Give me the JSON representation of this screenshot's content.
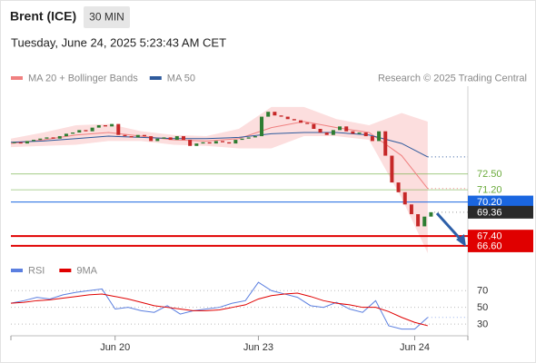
{
  "header": {
    "title": "Brent (ICE)",
    "interval": "30 MIN",
    "timestamp": "Tuesday, June 24, 2025 5:23:43 AM CET"
  },
  "chart_data": [
    {
      "type": "candlestick",
      "credit": "Research © 2025 Trading Central",
      "xlim": [
        0,
        65
      ],
      "ylim": [
        65.7,
        79.7
      ],
      "up_color": "#2e7d32",
      "down_color": "#c62828",
      "series": [
        {
          "name": "Brent",
          "values": [
            75.1,
            75.0,
            75.2,
            75.3,
            75.4,
            75.5,
            75.4,
            75.6,
            75.8,
            75.9,
            76.1,
            76.0,
            76.3,
            76.5,
            76.4,
            76.6,
            75.7,
            75.6,
            75.5,
            75.7,
            75.6,
            75.2,
            75.4,
            75.5,
            75.3,
            75.6,
            75.3,
            74.8,
            75.0,
            75.1,
            75.0,
            75.2,
            75.1,
            75.0,
            75.3,
            75.4,
            75.5,
            75.6,
            77.2,
            77.6,
            77.3,
            77.2,
            77.0,
            76.9,
            76.7,
            76.6,
            76.2,
            75.9,
            75.7,
            76.1,
            76.4,
            76.0,
            75.8,
            75.9,
            75.6,
            75.2,
            76.0,
            74.0,
            71.8,
            71.0,
            70.0,
            69.2,
            68.2,
            69.0,
            69.36
          ]
        }
      ],
      "overlays": [
        {
          "name": "MA 20 + Bollinger Bands",
          "color": "#f08080",
          "band_color": "#fcdede",
          "x": [
            0,
            5,
            10,
            15,
            20,
            25,
            30,
            35,
            40,
            45,
            50,
            55,
            60,
            64
          ],
          "values": [
            75.0,
            75.3,
            75.7,
            75.9,
            75.6,
            75.3,
            75.2,
            75.4,
            76.3,
            76.8,
            76.3,
            75.9,
            74.0,
            71.3
          ],
          "upper": [
            75.4,
            75.9,
            76.5,
            76.6,
            76.0,
            75.7,
            75.6,
            76.2,
            78.0,
            78.0,
            77.0,
            76.5,
            77.5,
            76.8
          ],
          "lower": [
            74.7,
            74.8,
            74.9,
            75.2,
            75.2,
            74.9,
            74.8,
            74.6,
            74.6,
            75.6,
            75.6,
            75.3,
            70.5,
            66.0
          ]
        },
        {
          "name": "MA 50",
          "color": "#2e5a9c",
          "x": [
            0,
            5,
            10,
            15,
            20,
            25,
            30,
            35,
            40,
            45,
            50,
            55,
            60,
            64
          ],
          "values": [
            75.1,
            75.2,
            75.4,
            75.6,
            75.5,
            75.4,
            75.4,
            75.5,
            75.8,
            75.9,
            75.9,
            75.7,
            75.0,
            73.9
          ]
        }
      ],
      "levels": [
        {
          "value": 72.5,
          "label": "72.50",
          "color": "#6aaa3a",
          "style": "text"
        },
        {
          "value": 71.2,
          "label": "71.20",
          "color": "#6aaa3a",
          "style": "text"
        },
        {
          "value": 70.2,
          "label": "70.20",
          "color": "#1a66e0",
          "style": "box"
        },
        {
          "value": 69.36,
          "label": "69.36",
          "color": "#2a2a2a",
          "style": "current"
        },
        {
          "value": 67.4,
          "label": "67.40",
          "color": "#e00000",
          "style": "box"
        },
        {
          "value": 66.6,
          "label": "66.60",
          "color": "#e00000",
          "style": "box"
        }
      ]
    },
    {
      "type": "line",
      "xlim": [
        0,
        65
      ],
      "ylim": [
        16,
        92
      ],
      "yticks": [
        70,
        50,
        30
      ],
      "xticks": [
        {
          "value": 16,
          "label": "Jun 20"
        },
        {
          "value": 38,
          "label": "Jun 23"
        },
        {
          "value": 62,
          "label": "Jun 24"
        }
      ],
      "x": [
        0,
        2,
        4,
        6,
        8,
        10,
        12,
        14,
        16,
        18,
        20,
        22,
        24,
        26,
        28,
        30,
        32,
        34,
        36,
        38,
        40,
        42,
        44,
        46,
        48,
        50,
        52,
        54,
        56,
        58,
        60,
        62,
        64
      ],
      "series": [
        {
          "name": "RSI",
          "color": "#5b7fe0",
          "values": [
            55,
            58,
            62,
            60,
            65,
            68,
            70,
            72,
            48,
            50,
            46,
            44,
            52,
            42,
            46,
            48,
            50,
            55,
            58,
            80,
            70,
            66,
            62,
            52,
            50,
            56,
            48,
            44,
            58,
            28,
            24,
            24,
            38
          ]
        },
        {
          "name": "9MA",
          "color": "#e00000",
          "values": [
            55,
            56,
            58,
            59,
            61,
            63,
            65,
            66,
            63,
            60,
            56,
            52,
            50,
            48,
            46,
            46,
            47,
            50,
            53,
            60,
            64,
            66,
            67,
            63,
            58,
            55,
            53,
            50,
            50,
            45,
            38,
            32,
            28
          ]
        }
      ]
    }
  ]
}
